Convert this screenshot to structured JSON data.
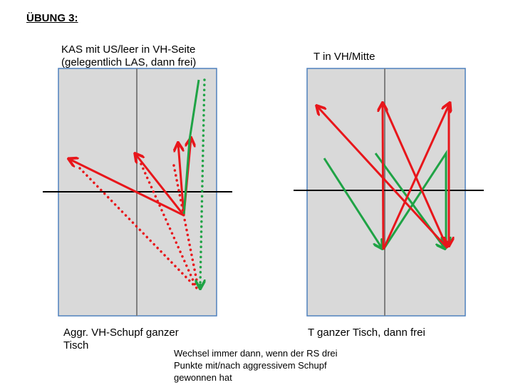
{
  "title": "ÜBUNG 3:",
  "diagrams": [
    {
      "top_label": [
        "KAS mit US/leer in VH-Seite",
        "(gelegentlich LAS, dann frei)"
      ],
      "bottom_label": [
        "Aggr. VH-Schupf ganzer",
        "Tisch"
      ]
    },
    {
      "top_label": [
        "T in VH/Mitte"
      ],
      "bottom_label": [
        "T ganzer Tisch, dann frei"
      ]
    }
  ],
  "note": [
    "Wechsel immer dann, wenn der RS drei",
    "Punkte mit/nach aggressivem Schupf",
    "gewonnen hat"
  ]
}
